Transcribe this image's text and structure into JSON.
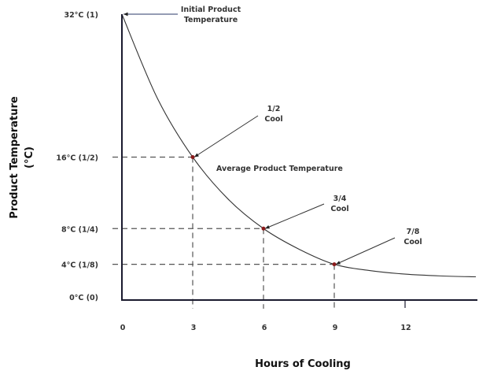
{
  "chart_data": {
    "type": "line",
    "title": "",
    "xlabel": "Hours of Cooling",
    "ylabel_lines": [
      "Product Temperature",
      "(°C)"
    ],
    "x_ticks": [
      {
        "value": 0,
        "label": "0"
      },
      {
        "value": 3,
        "label": "3"
      },
      {
        "value": 6,
        "label": "6"
      },
      {
        "value": 9,
        "label": "9"
      },
      {
        "value": 12,
        "label": "12"
      }
    ],
    "y_ticks": [
      {
        "value": 32,
        "label": "32°C (1)"
      },
      {
        "value": 16,
        "label": "16°C (1/2)"
      },
      {
        "value": 8,
        "label": "8°C (1/4)"
      },
      {
        "value": 4,
        "label": "4°C (1/8)"
      },
      {
        "value": 0,
        "label": "0°C (0)"
      }
    ],
    "xlim": [
      0,
      15
    ],
    "ylim": [
      0,
      32
    ],
    "grid": false,
    "curve": {
      "x": [
        0,
        1.5,
        3,
        4.5,
        6,
        7.5,
        9,
        10.5,
        12,
        13.5,
        15
      ],
      "y": [
        32,
        22.6,
        16,
        11.3,
        8,
        5.7,
        4,
        3.3,
        2.9,
        2.7,
        2.6
      ]
    },
    "marked_points": [
      {
        "x": 3,
        "y": 16
      },
      {
        "x": 6,
        "y": 8
      },
      {
        "x": 9,
        "y": 4
      }
    ],
    "annotations": [
      {
        "lines": [
          "Initial Product",
          "Temperature"
        ],
        "x": 0,
        "y": 32
      },
      {
        "lines": [
          "1/2",
          "Cool"
        ],
        "x": 3,
        "y": 16
      },
      {
        "lines": [
          "3/4",
          "Cool"
        ],
        "x": 6,
        "y": 8
      },
      {
        "lines": [
          "7/8",
          "Cool"
        ],
        "x": 9,
        "y": 4
      }
    ],
    "curve_label": "Average Product Temperature",
    "colors": {
      "curve": "#333333",
      "axis": "#1a1a2e",
      "dash": "#555555",
      "marker": "#8b1a1a"
    }
  }
}
